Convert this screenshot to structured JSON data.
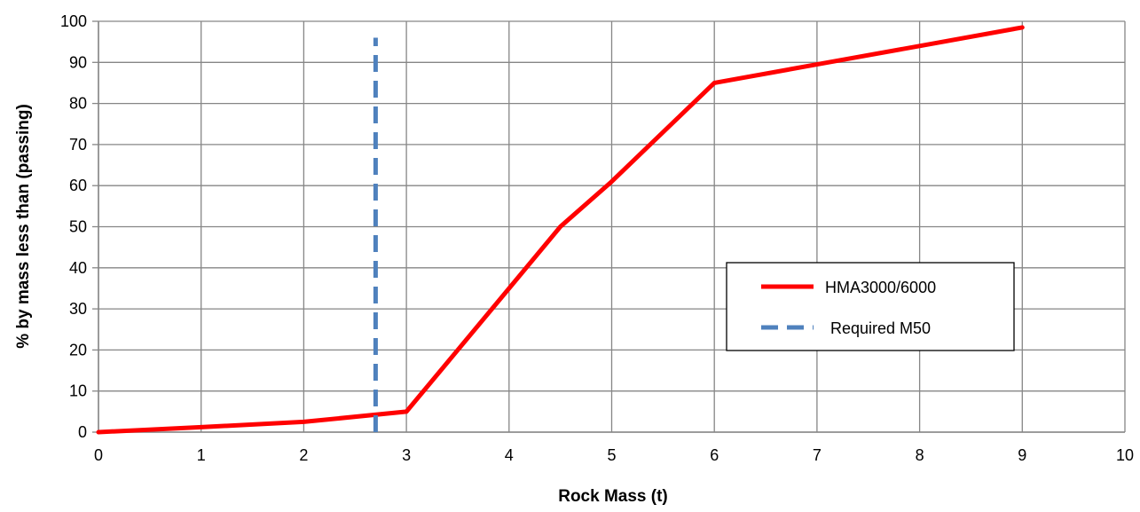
{
  "chart_data": {
    "type": "line",
    "title": "",
    "xlabel": "Rock Mass (t)",
    "ylabel": "% by mass less than (passing)",
    "xlim": [
      0,
      10
    ],
    "ylim": [
      0,
      100
    ],
    "x_ticks": [
      0,
      1,
      2,
      3,
      4,
      5,
      6,
      7,
      8,
      9,
      10
    ],
    "y_ticks": [
      0,
      10,
      20,
      30,
      40,
      50,
      60,
      70,
      80,
      90,
      100
    ],
    "grid": true,
    "legend_position": "right-center",
    "series": [
      {
        "name": "HMA3000/6000",
        "style": "solid",
        "color": "#FF0000",
        "x": [
          0,
          1,
          2,
          3,
          4,
          4.5,
          5,
          6,
          7,
          8,
          9
        ],
        "y": [
          0,
          1.2,
          2.5,
          5,
          35,
          50,
          61,
          85,
          89.5,
          94,
          98.5
        ]
      },
      {
        "name": "Required M50",
        "style": "dashed",
        "color": "#4F81BD",
        "x": [
          2.7,
          2.7
        ],
        "y": [
          0,
          96
        ]
      }
    ]
  }
}
